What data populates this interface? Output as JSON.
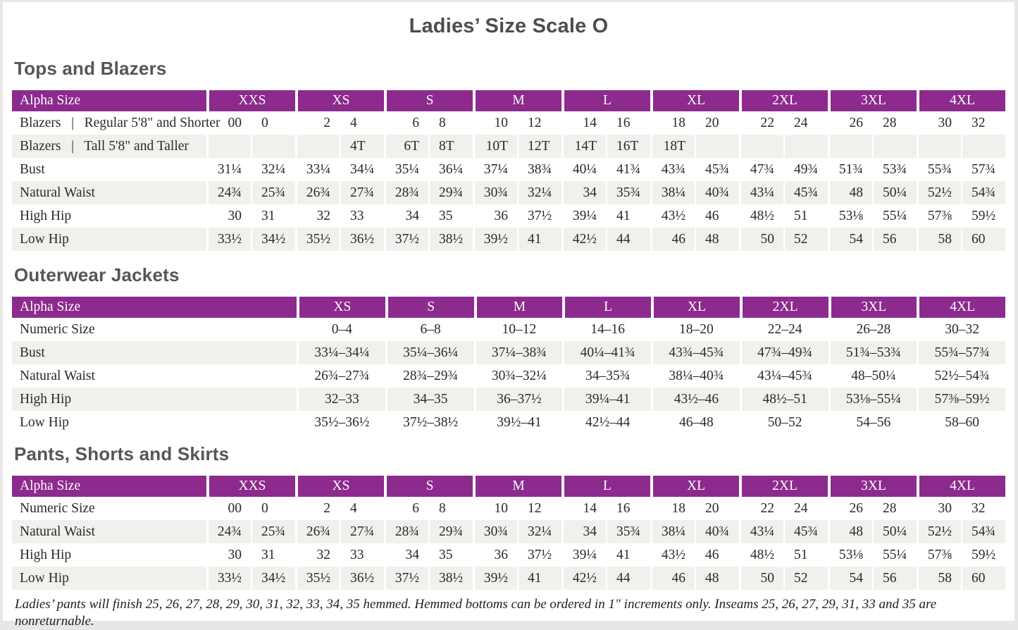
{
  "title": "Ladies’ Size Scale O",
  "colors": {
    "header_purple": "#8C2A8E",
    "row_stripe": "#F2F0ED"
  },
  "tables": [
    {
      "section": "Tops and Blazers",
      "header_label": "Alpha Size",
      "split": true,
      "label_col_width": 276,
      "sizes": [
        "XXS",
        "XS",
        "S",
        "M",
        "L",
        "XL",
        "2XL",
        "3XL",
        "4XL"
      ],
      "rows": [
        {
          "label": "Blazers  |  Regular 5'8\" and Shorter",
          "values": [
            "00",
            "0",
            "2",
            "4",
            "6",
            "8",
            "10",
            "12",
            "14",
            "16",
            "18",
            "20",
            "22",
            "24",
            "26",
            "28",
            "30",
            "32"
          ]
        },
        {
          "label": "Blazers  |  Tall 5'8\" and Taller",
          "values": [
            "",
            "",
            "",
            "4T",
            "6T",
            "8T",
            "10T",
            "12T",
            "14T",
            "16T",
            "18T",
            "",
            "",
            "",
            "",
            "",
            "",
            ""
          ]
        },
        {
          "label": "Bust",
          "values": [
            "31¼",
            "32¼",
            "33¼",
            "34¼",
            "35¼",
            "36¼",
            "37¼",
            "38¾",
            "40¼",
            "41¾",
            "43¾",
            "45¾",
            "47¾",
            "49¾",
            "51¾",
            "53¾",
            "55¾",
            "57¾"
          ]
        },
        {
          "label": "Natural Waist",
          "values": [
            "24¾",
            "25¾",
            "26¾",
            "27¾",
            "28¾",
            "29¾",
            "30¾",
            "32¼",
            "34",
            "35¾",
            "38¼",
            "40¾",
            "43¼",
            "45¾",
            "48",
            "50¼",
            "52½",
            "54¾"
          ]
        },
        {
          "label": "High Hip",
          "values": [
            "30",
            "31",
            "32",
            "33",
            "34",
            "35",
            "36",
            "37½",
            "39¼",
            "41",
            "43½",
            "46",
            "48½",
            "51",
            "53⅛",
            "55¼",
            "57⅜",
            "59½"
          ]
        },
        {
          "label": "Low Hip",
          "values": [
            "33½",
            "34½",
            "35½",
            "36½",
            "37½",
            "38½",
            "39½",
            "41",
            "42½",
            "44",
            "46",
            "48",
            "50",
            "52",
            "54",
            "56",
            "58",
            "60"
          ]
        }
      ]
    },
    {
      "section": "Outerwear Jackets",
      "header_label": "Alpha Size",
      "split": false,
      "label_col_width": 404,
      "sizes": [
        "XS",
        "S",
        "M",
        "L",
        "XL",
        "2XL",
        "3XL",
        "4XL"
      ],
      "rows": [
        {
          "label": "Numeric Size",
          "values": [
            "0–4",
            "6–8",
            "10–12",
            "14–16",
            "18–20",
            "22–24",
            "26–28",
            "30–32"
          ]
        },
        {
          "label": "Bust",
          "values": [
            "33¼–34¼",
            "35¼–36¼",
            "37¼–38¾",
            "40¼–41¾",
            "43¾–45¾",
            "47¾–49¾",
            "51¾–53¾",
            "55¾–57¾"
          ]
        },
        {
          "label": "Natural Waist",
          "values": [
            "26¾–27¾",
            "28¾–29¾",
            "30¾–32¼",
            "34–35¾",
            "38¼–40¾",
            "43¼–45¾",
            "48–50¼",
            "52½–54¾"
          ]
        },
        {
          "label": "High Hip",
          "values": [
            "32–33",
            "34–35",
            "36–37½",
            "39¼–41",
            "43½–46",
            "48½–51",
            "53⅛–55¼",
            "57⅜–59½"
          ]
        },
        {
          "label": "Low Hip",
          "values": [
            "35½–36½",
            "37½–38½",
            "39½–41",
            "42½–44",
            "46–48",
            "50–52",
            "54–56",
            "58–60"
          ]
        }
      ]
    },
    {
      "section": "Pants, Shorts and Skirts",
      "header_label": "Alpha Size",
      "split": true,
      "label_col_width": 276,
      "sizes": [
        "XXS",
        "XS",
        "S",
        "M",
        "L",
        "XL",
        "2XL",
        "3XL",
        "4XL"
      ],
      "rows": [
        {
          "label": "Numeric Size",
          "values": [
            "00",
            "0",
            "2",
            "4",
            "6",
            "8",
            "10",
            "12",
            "14",
            "16",
            "18",
            "20",
            "22",
            "24",
            "26",
            "28",
            "30",
            "32"
          ]
        },
        {
          "label": "Natural Waist",
          "values": [
            "24¾",
            "25¾",
            "26¾",
            "27¾",
            "28¾",
            "29¾",
            "30¾",
            "32¼",
            "34",
            "35¾",
            "38¼",
            "40¾",
            "43¼",
            "45¾",
            "48",
            "50¼",
            "52½",
            "54¾"
          ]
        },
        {
          "label": "High Hip",
          "values": [
            "30",
            "31",
            "32",
            "33",
            "34",
            "35",
            "36",
            "37½",
            "39¼",
            "41",
            "43½",
            "46",
            "48½",
            "51",
            "53⅛",
            "55¼",
            "57⅜",
            "59½"
          ]
        },
        {
          "label": "Low Hip",
          "values": [
            "33½",
            "34½",
            "35½",
            "36½",
            "37½",
            "38½",
            "39½",
            "41",
            "42½",
            "44",
            "46",
            "48",
            "50",
            "52",
            "54",
            "56",
            "58",
            "60"
          ]
        }
      ]
    }
  ],
  "footnote": "Ladies’ pants will finish 25, 26, 27, 28, 29, 30, 31, 32, 33, 34, 35 hemmed. Hemmed bottoms can be ordered in 1\" increments only. Inseams 25, 26, 27, 29, 31, 33 and 35 are nonreturnable."
}
